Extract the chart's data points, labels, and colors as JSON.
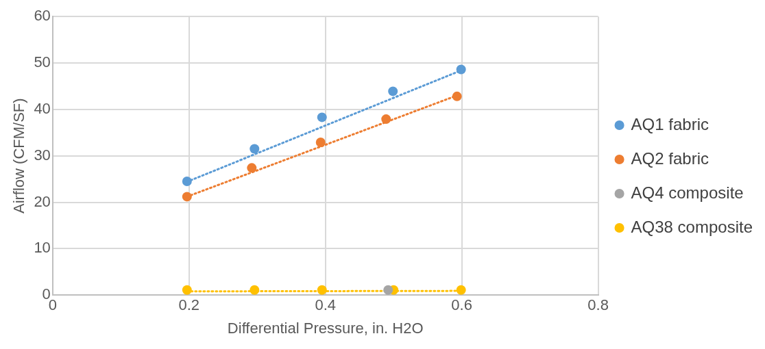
{
  "chart_data": {
    "type": "scatter",
    "xlabel": "Differential Pressure, in. H2O",
    "ylabel": "Airflow (CFM/SF)",
    "xlim": [
      0,
      0.8
    ],
    "xticks": [
      0,
      0.2,
      0.4,
      0.6,
      0.8
    ],
    "ylim": [
      0,
      60
    ],
    "yticks": [
      0,
      10,
      20,
      30,
      40,
      50,
      60
    ],
    "grid": true,
    "legend": "right",
    "marker": "circle",
    "series": [
      {
        "name": "AQ1 fabric",
        "color": "#5b9bd5",
        "x": [
          0.197,
          0.296,
          0.395,
          0.499,
          0.599
        ],
        "values": [
          24.5,
          31.5,
          38.3,
          43.9,
          48.6
        ]
      },
      {
        "name": "AQ2 fabric",
        "color": "#ed7d31",
        "x": [
          0.197,
          0.292,
          0.393,
          0.489,
          0.593
        ],
        "values": [
          21.2,
          27.4,
          32.9,
          37.9,
          42.8
        ]
      },
      {
        "name": "AQ4 composite",
        "color": "#a5a5a5",
        "x": [
          0.492
        ],
        "values": [
          1.1
        ]
      },
      {
        "name": "AQ38 composite",
        "color": "#ffc000",
        "x": [
          0.197,
          0.296,
          0.395,
          0.5,
          0.599
        ],
        "values": [
          1.1,
          1.1,
          1.1,
          1.1,
          1.1
        ]
      },
      {
        "type": "line",
        "color": "#5b9bd5",
        "line_style": "dotted",
        "marker": "none",
        "x": [
          0.197,
          0.599
        ],
        "values": [
          24.4,
          48.4
        ]
      },
      {
        "type": "line",
        "color": "#ed7d31",
        "line_style": "dotted",
        "marker": "none",
        "x": [
          0.197,
          0.593
        ],
        "values": [
          21.2,
          43.0
        ]
      },
      {
        "type": "line",
        "color": "#ffc000",
        "line_style": "dotted",
        "marker": "none",
        "x": [
          0.197,
          0.599
        ],
        "values": [
          0.8,
          0.9
        ]
      }
    ]
  }
}
